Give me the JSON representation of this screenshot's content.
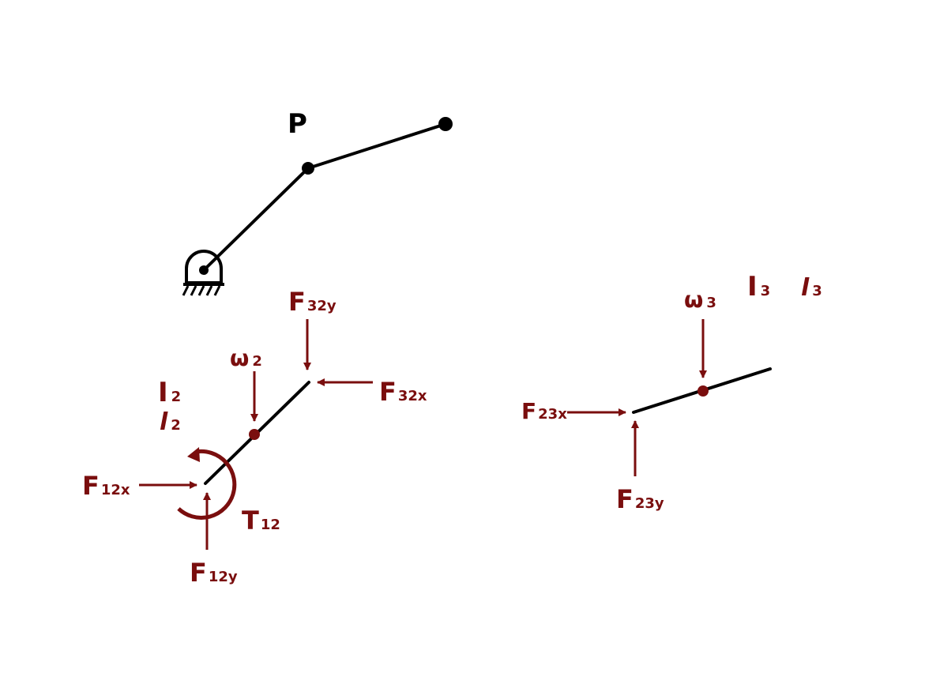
{
  "colors": {
    "link": "#000000",
    "force": "#7a0e0e",
    "background": "#ffffff"
  },
  "mechanism": {
    "point_label": "P"
  },
  "link2_fbd": {
    "inertia": {
      "main": "I",
      "sub": "2"
    },
    "length": {
      "main": "l",
      "sub": "2"
    },
    "omega": {
      "main": "ω",
      "sub": "2"
    },
    "forces": {
      "f32y": {
        "main": "F",
        "sub": "32y"
      },
      "f32x": {
        "main": "F",
        "sub": "32x"
      },
      "f12x": {
        "main": "F",
        "sub": "12x"
      },
      "f12y": {
        "main": "F",
        "sub": "12y"
      }
    },
    "torque": {
      "main": "T",
      "sub": "12"
    }
  },
  "link3_fbd": {
    "inertia": {
      "main": "I",
      "sub": "3"
    },
    "length": {
      "main": "l",
      "sub": "3"
    },
    "omega": {
      "main": "ω",
      "sub": "3"
    },
    "forces": {
      "f23x": {
        "main": "F",
        "sub": "23x"
      },
      "f23y": {
        "main": "F",
        "sub": "23y"
      }
    }
  }
}
